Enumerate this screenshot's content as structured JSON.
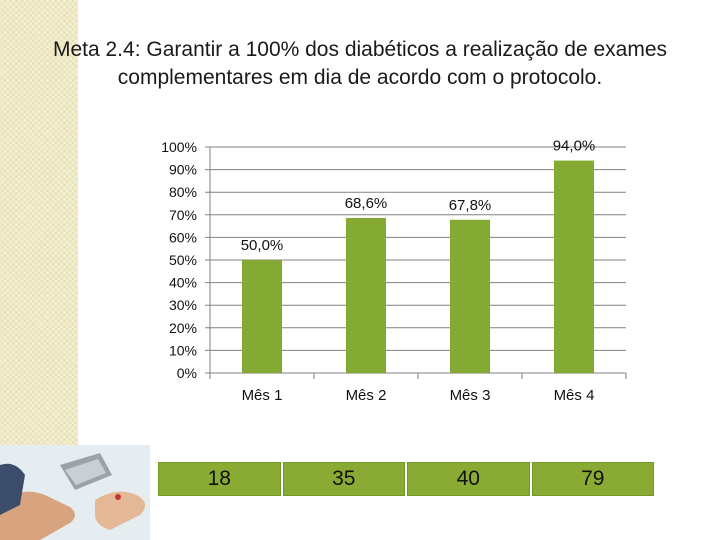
{
  "title": {
    "prefix": "Meta 2.4:",
    "text": " Garantir a 100% dos diabéticos a realização de exames complementares em dia de acordo com o protocolo."
  },
  "chart_data": {
    "type": "bar",
    "categories": [
      "Mês 1",
      "Mês 2",
      "Mês 3",
      "Mês 4"
    ],
    "values": [
      50.0,
      68.6,
      67.8,
      94.0
    ],
    "data_labels": [
      "50,0%",
      "68,6%",
      "67,8%",
      "94,0%"
    ],
    "ylim": [
      0,
      100
    ],
    "y_ticks": [
      "0%",
      "10%",
      "20%",
      "30%",
      "40%",
      "50%",
      "60%",
      "70%",
      "80%",
      "90%",
      "100%"
    ],
    "grid": true,
    "bar_color": "#84aa33"
  },
  "counts": [
    "18",
    "35",
    "40",
    "79"
  ],
  "colors": {
    "count_cell": "#8aab33",
    "grid": "#808080"
  },
  "decor": {
    "photo": "hands-glucose-test-image"
  }
}
